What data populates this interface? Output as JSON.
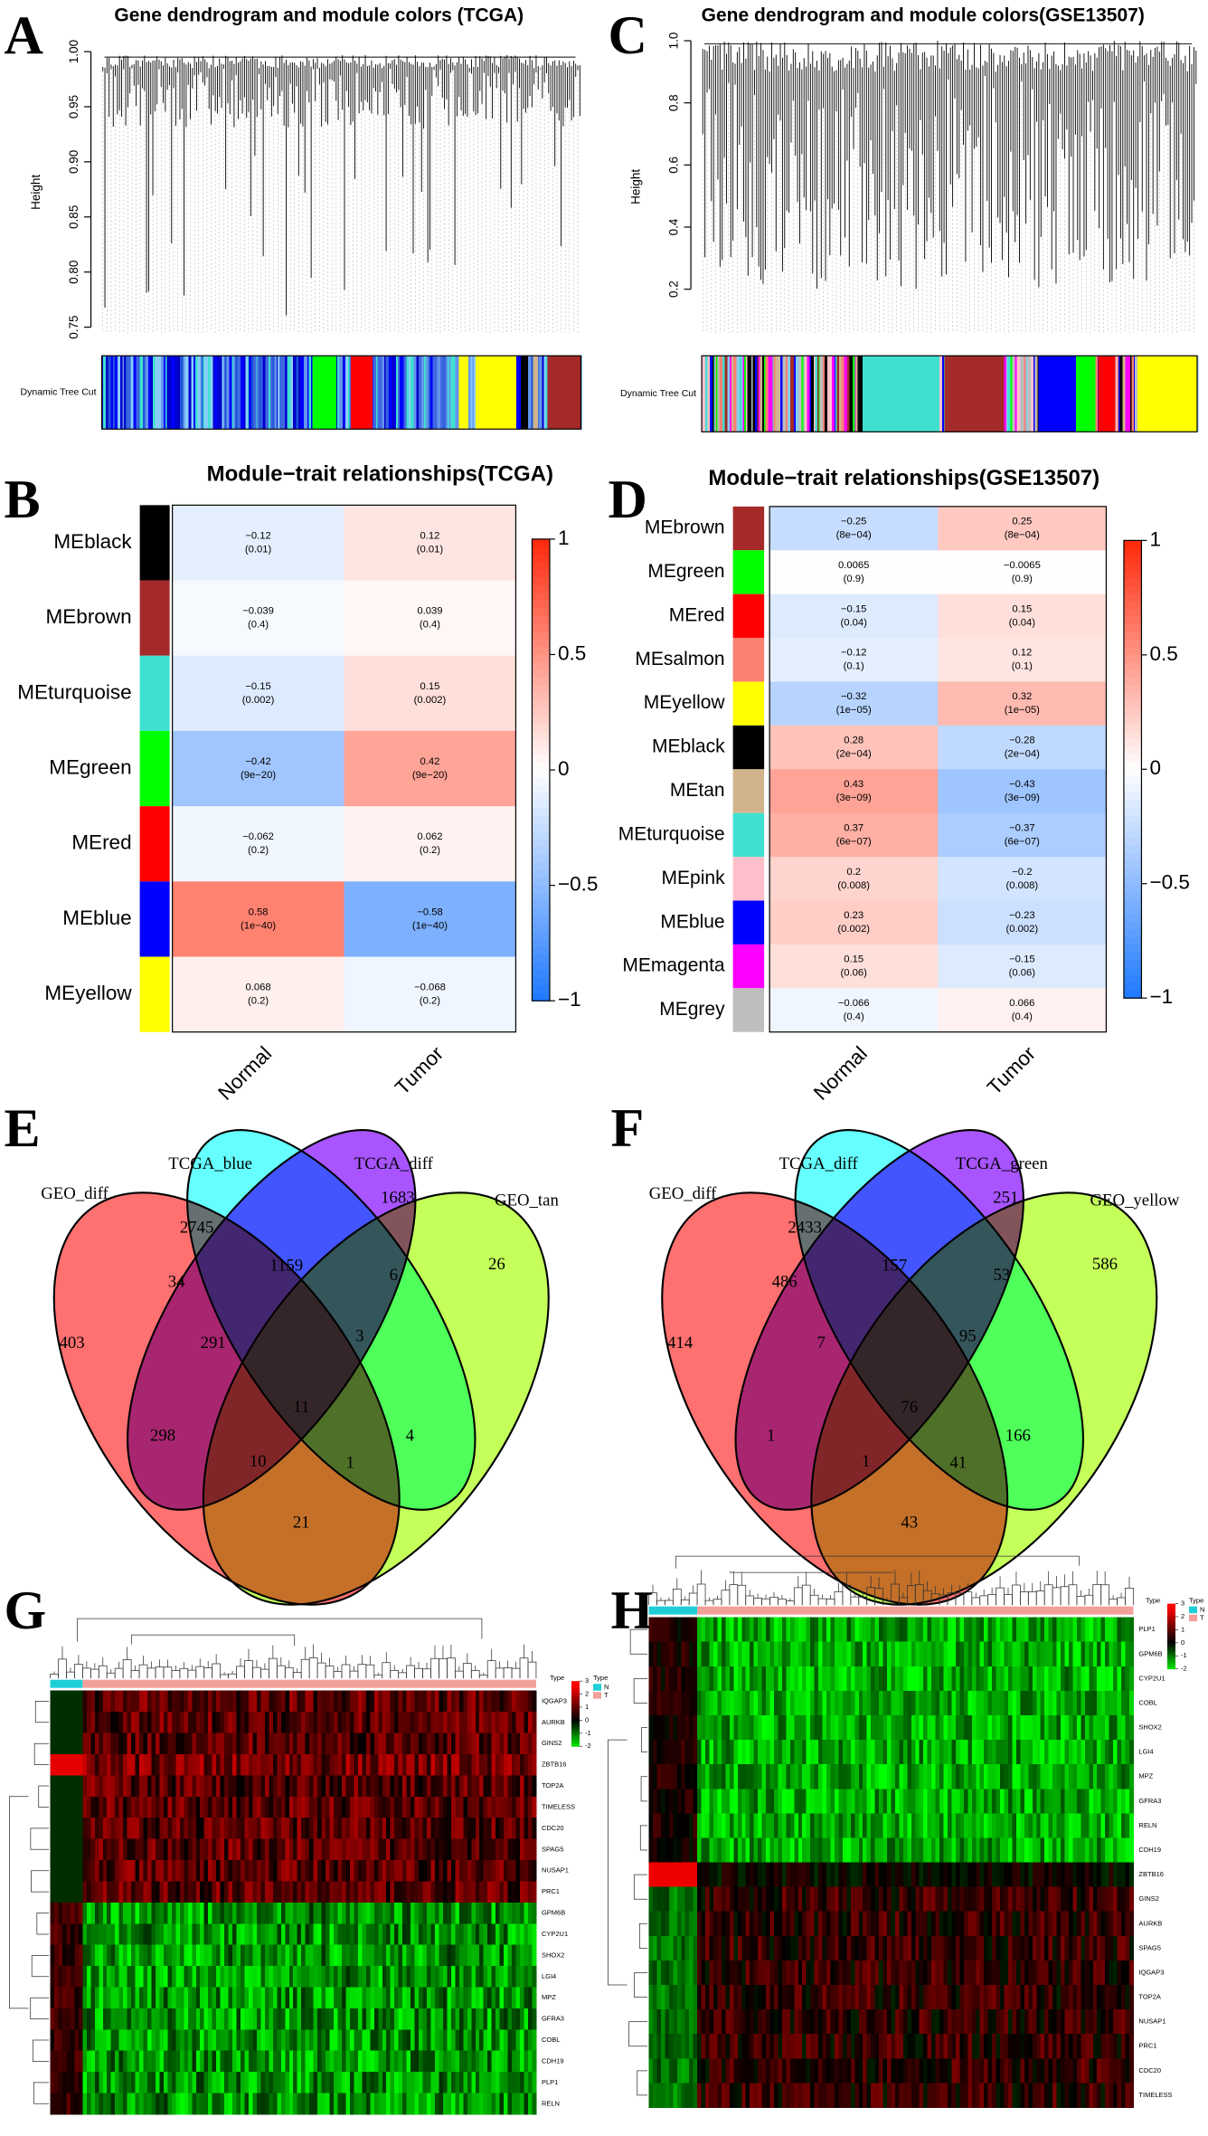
{
  "dendrogram_tcga": {
    "letter": "A",
    "title": "Gene dendrogram and module colors (TCGA)",
    "ylabel": "Height",
    "ylim": [
      0.745,
      1.0
    ],
    "yticks": [
      0.75,
      {
        "value": 0.8,
        "label": "0.80"
      },
      0.85,
      {
        "value": 0.9,
        "label": "0.90"
      },
      0.95,
      {
        "value": 1,
        "label": "1.00"
      }
    ],
    "strip_label": "Dynamic Tree Cut"
  },
  "dendrogram_geo": {
    "letter": "C",
    "title": "Gene dendrogram and module colors(GSE13507)",
    "ylabel": "Height",
    "ylim": [
      0.06,
      1.0
    ],
    "yticks": [
      0.2,
      0.4,
      0.6,
      0.8,
      {
        "value": 1,
        "label": "1.0"
      }
    ],
    "strip_label": "Dynamic Tree Cut"
  },
  "traits_tcga": {
    "letter": "B",
    "title": "Module−trait relationships(TCGA)",
    "columns": [
      "Normal",
      "Tumor"
    ],
    "colorbar_lim": [
      -1,
      1
    ],
    "colorbar_ticks": [
      1,
      0.5,
      0,
      {
        "value": -0.5,
        "label": "−0.5"
      },
      {
        "value": -1,
        "label": "−1"
      }
    ],
    "rows": [
      {
        "name": "MEblack",
        "color": "#000000",
        "values": [
          -0.12,
          0.12
        ],
        "value_labels": [
          "−0.12",
          "0.12"
        ],
        "pvalues": [
          "(0.01)",
          "(0.01)"
        ]
      },
      {
        "name": "MEbrown",
        "color": "#a52a2a",
        "values": [
          -0.039,
          0.039
        ],
        "value_labels": [
          "−0.039",
          "0.039"
        ],
        "pvalues": [
          "(0.4)",
          "(0.4)"
        ]
      },
      {
        "name": "MEturquoise",
        "color": "#40e0d0",
        "values": [
          -0.15,
          0.15
        ],
        "value_labels": [
          "−0.15",
          "0.15"
        ],
        "pvalues": [
          "(0.002)",
          "(0.002)"
        ]
      },
      {
        "name": "MEgreen",
        "color": "#00ff00",
        "values": [
          -0.42,
          0.42
        ],
        "value_labels": [
          "−0.42",
          "0.42"
        ],
        "pvalues": [
          "(9e−20)",
          "(9e−20)"
        ]
      },
      {
        "name": "MEred",
        "color": "#ff0000",
        "values": [
          -0.062,
          0.062
        ],
        "value_labels": [
          "−0.062",
          "0.062"
        ],
        "pvalues": [
          "(0.2)",
          "(0.2)"
        ]
      },
      {
        "name": "MEblue",
        "color": "#0000ff",
        "values": [
          0.58,
          -0.58
        ],
        "value_labels": [
          "0.58",
          "−0.58"
        ],
        "pvalues": [
          "(1e−40)",
          "(1e−40)"
        ]
      },
      {
        "name": "MEyellow",
        "color": "#ffff00",
        "values": [
          0.068,
          -0.068
        ],
        "value_labels": [
          "0.068",
          "−0.068"
        ],
        "pvalues": [
          "(0.2)",
          "(0.2)"
        ]
      }
    ]
  },
  "traits_geo": {
    "letter": "D",
    "title": "Module−trait relationships(GSE13507)",
    "columns": [
      "Normal",
      "Tumor"
    ],
    "colorbar_lim": [
      -1,
      1
    ],
    "colorbar_ticks": [
      1,
      0.5,
      0,
      {
        "value": -0.5,
        "label": "−0.5"
      },
      {
        "value": -1,
        "label": "−1"
      }
    ],
    "rows": [
      {
        "name": "MEbrown",
        "color": "#a52a2a",
        "values": [
          -0.25,
          0.25
        ],
        "value_labels": [
          "−0.25",
          "0.25"
        ],
        "pvalues": [
          "(8e−04)",
          "(8e−04)"
        ]
      },
      {
        "name": "MEgreen",
        "color": "#00ff00",
        "values": [
          0.0065,
          -0.0065
        ],
        "value_labels": [
          "0.0065",
          "−0.0065"
        ],
        "pvalues": [
          "(0.9)",
          "(0.9)"
        ]
      },
      {
        "name": "MEred",
        "color": "#ff0000",
        "values": [
          -0.15,
          0.15
        ],
        "value_labels": [
          "−0.15",
          "0.15"
        ],
        "pvalues": [
          "(0.04)",
          "(0.04)"
        ]
      },
      {
        "name": "MEsalmon",
        "color": "#fa8072",
        "values": [
          -0.12,
          0.12
        ],
        "value_labels": [
          "−0.12",
          "0.12"
        ],
        "pvalues": [
          "(0.1)",
          "(0.1)"
        ]
      },
      {
        "name": "MEyellow",
        "color": "#ffff00",
        "values": [
          -0.32,
          0.32
        ],
        "value_labels": [
          "−0.32",
          "0.32"
        ],
        "pvalues": [
          "(1e−05)",
          "(1e−05)"
        ]
      },
      {
        "name": "MEblack",
        "color": "#000000",
        "values": [
          0.28,
          -0.28
        ],
        "value_labels": [
          "0.28",
          "−0.28"
        ],
        "pvalues": [
          "(2e−04)",
          "(2e−04)"
        ]
      },
      {
        "name": "MEtan",
        "color": "#d2b48c",
        "values": [
          0.43,
          -0.43
        ],
        "value_labels": [
          "0.43",
          "−0.43"
        ],
        "pvalues": [
          "(3e−09)",
          "(3e−09)"
        ]
      },
      {
        "name": "MEturquoise",
        "color": "#40e0d0",
        "values": [
          0.37,
          -0.37
        ],
        "value_labels": [
          "0.37",
          "−0.37"
        ],
        "pvalues": [
          "(6e−07)",
          "(6e−07)"
        ]
      },
      {
        "name": "MEpink",
        "color": "#ffc0cb",
        "values": [
          0.2,
          -0.2
        ],
        "value_labels": [
          "0.2",
          "−0.2"
        ],
        "pvalues": [
          "(0.008)",
          "(0.008)"
        ]
      },
      {
        "name": "MEblue",
        "color": "#0000ff",
        "values": [
          0.23,
          -0.23
        ],
        "value_labels": [
          "0.23",
          "−0.23"
        ],
        "pvalues": [
          "(0.002)",
          "(0.002)"
        ]
      },
      {
        "name": "MEmagenta",
        "color": "#ff00ff",
        "values": [
          0.15,
          -0.15
        ],
        "value_labels": [
          "0.15",
          "−0.15"
        ],
        "pvalues": [
          "(0.06)",
          "(0.06)"
        ]
      },
      {
        "name": "MEgrey",
        "color": "#bebebe",
        "values": [
          -0.066,
          0.066
        ],
        "value_labels": [
          "−0.066",
          "0.066"
        ],
        "pvalues": [
          "(0.4)",
          "(0.4)"
        ]
      }
    ]
  },
  "venn_e": {
    "letter": "E",
    "sets": [
      "GEO_diff",
      "TCGA_blue",
      "TCGA_diff",
      "GEO_tan"
    ],
    "counts": [
      403,
      2745,
      1683,
      26,
      34,
      1159,
      6,
      291,
      3,
      11,
      298,
      10,
      1,
      4,
      21
    ]
  },
  "venn_f": {
    "letter": "F",
    "sets": [
      "GEO_diff",
      "TCGA_diff",
      "TCGA_green",
      "GEO_yellow"
    ],
    "counts": [
      414,
      2433,
      251,
      586,
      486,
      157,
      53,
      7,
      95,
      76,
      1,
      1,
      41,
      166,
      43
    ]
  },
  "heatmap_g": {
    "letter": "G",
    "genes": [
      "IQGAP3",
      "AURKB",
      "GINS2",
      "ZBTB16",
      "TOP2A",
      "TIMELESS",
      "CDC20",
      "SPAG5",
      "NUSAP1",
      "PRC1",
      "GPM6B",
      "CYP2U1",
      "SHOX2",
      "LGI4",
      "MPZ",
      "GFRA3",
      "COBL",
      "CDH19",
      "PLP1",
      "RELN"
    ],
    "legend_ticks": [
      3,
      2,
      1,
      0,
      -1,
      -2
    ],
    "type_title": "Type",
    "type_levels": [
      "N",
      "T"
    ],
    "type_colors": [
      "#1fcfd8",
      "#f4a09a"
    ]
  },
  "heatmap_h": {
    "letter": "H",
    "genes": [
      "PLP1",
      "GPM6B",
      "CYP2U1",
      "COBL",
      "SHOX2",
      "LGI4",
      "MPZ",
      "GFRA3",
      "RELN",
      "CDH19",
      "ZBTB16",
      "GINS2",
      "AURKB",
      "SPAG5",
      "IQGAP3",
      "TOP2A",
      "NUSAP1",
      "PRC1",
      "CDC20",
      "TIMELESS"
    ],
    "legend_ticks": [
      3,
      2,
      1,
      0,
      -1,
      -2
    ],
    "type_title": "Type",
    "type_levels": [
      "N",
      "T"
    ],
    "type_colors": [
      "#1fcfd8",
      "#f4a09a"
    ]
  }
}
